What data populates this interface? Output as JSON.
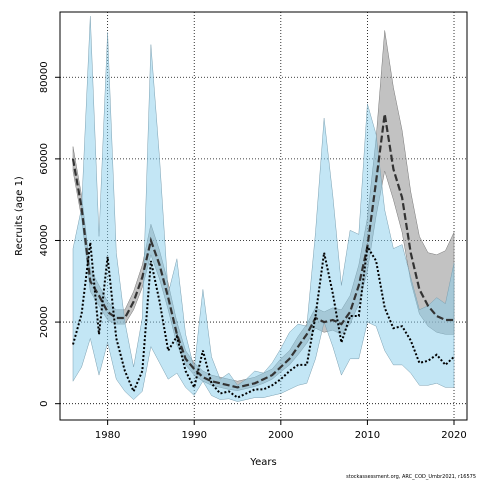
{
  "chart_data": {
    "type": "line",
    "xlabel": "Years",
    "ylabel": "Recruits (age 1)",
    "xlim": [
      1974.5,
      2021.5
    ],
    "ylim": [
      -4000,
      96000
    ],
    "x_ticks": [
      1980,
      1990,
      2000,
      2010,
      2020
    ],
    "y_ticks": [
      0,
      20000,
      40000,
      60000,
      80000
    ],
    "grid": true,
    "grid_style": "dotted",
    "caption": "stockassessment.org, ARC_COD_Umbr2021, r16575",
    "colors": {
      "blue_band": "#87CEEB",
      "blue_line": "#000000",
      "grey_band": "#999999",
      "grey_line": "#333333"
    },
    "series": [
      {
        "style": "blue-dotted",
        "x": [
          1976,
          1977,
          1978,
          1979,
          1980,
          1981,
          1982,
          1983,
          1984,
          1985,
          1986,
          1987,
          1988,
          1989,
          1990,
          1991,
          1992,
          1993,
          1994,
          1995,
          1996,
          1997,
          1998,
          1999,
          2000,
          2001,
          2002,
          2003,
          2004,
          2005,
          2006,
          2007,
          2008,
          2009,
          2010,
          2011,
          2012,
          2013,
          2014,
          2015,
          2016,
          2017,
          2018,
          2019,
          2020
        ],
        "y": [
          14500,
          22000,
          39500,
          17000,
          36000,
          16000,
          8000,
          3000,
          8000,
          35000,
          25000,
          13000,
          16500,
          8000,
          4000,
          13000,
          5000,
          2500,
          3000,
          1500,
          2500,
          3500,
          3500,
          4500,
          6000,
          8000,
          9500,
          9500,
          21500,
          37000,
          27000,
          15000,
          21500,
          21500,
          38500,
          35000,
          23500,
          18500,
          19000,
          15500,
          10000,
          10500,
          12000,
          9500,
          11500
        ],
        "lower": [
          5500,
          9000,
          16000,
          7000,
          15000,
          6000,
          3000,
          1000,
          3000,
          14000,
          10000,
          6000,
          7500,
          4000,
          2000,
          5500,
          2000,
          1000,
          1200,
          500,
          1000,
          1500,
          1500,
          2000,
          2500,
          3500,
          4500,
          5000,
          11000,
          20000,
          14000,
          7000,
          11000,
          11000,
          20000,
          19000,
          13000,
          9500,
          9500,
          7500,
          4500,
          4500,
          5000,
          4000,
          4000
        ],
        "upper": [
          38000,
          48000,
          95000,
          41000,
          91000,
          37000,
          20000,
          9000,
          21000,
          88000,
          60000,
          27000,
          35500,
          17000,
          8500,
          28000,
          11500,
          6000,
          7500,
          4500,
          6000,
          8000,
          7500,
          10000,
          13500,
          17500,
          19500,
          19000,
          42000,
          70000,
          51000,
          29000,
          42500,
          41500,
          73500,
          66000,
          47500,
          38000,
          39000,
          31000,
          23000,
          24000,
          26000,
          24500,
          34500
        ]
      },
      {
        "style": "grey-dashed",
        "x": [
          1976,
          1977,
          1978,
          1979,
          1980,
          1981,
          1982,
          1983,
          1984,
          1985,
          1986,
          1987,
          1988,
          1989,
          1990,
          1991,
          1992,
          1993,
          1994,
          1995,
          1996,
          1997,
          1998,
          1999,
          2000,
          2001,
          2002,
          2003,
          2004,
          2005,
          2006,
          2007,
          2008,
          2009,
          2010,
          2011,
          2012,
          2013,
          2014,
          2015,
          2016,
          2017,
          2018,
          2019,
          2020
        ],
        "y": [
          60000,
          48000,
          30000,
          26500,
          22500,
          21000,
          21000,
          25000,
          31000,
          40000,
          34000,
          26000,
          17000,
          11000,
          8500,
          6500,
          5500,
          5000,
          4500,
          4000,
          4500,
          5000,
          6000,
          7000,
          9000,
          11000,
          14000,
          17000,
          21000,
          20000,
          20500,
          19500,
          22500,
          29000,
          38500,
          54500,
          71000,
          57500,
          50500,
          37000,
          28000,
          24000,
          21500,
          20500,
          20500
        ],
        "lower": [
          57000,
          45500,
          27500,
          24000,
          20500,
          19500,
          19500,
          23000,
          28500,
          36500,
          30500,
          23000,
          14500,
          9500,
          7000,
          5500,
          4500,
          4000,
          3500,
          3200,
          3700,
          4200,
          5000,
          6000,
          7800,
          9500,
          12000,
          14800,
          18500,
          17500,
          18000,
          17000,
          19500,
          24500,
          32500,
          46000,
          57000,
          50000,
          42000,
          30000,
          22000,
          19000,
          17500,
          17000,
          17000
        ],
        "upper": [
          63000,
          51000,
          33000,
          29000,
          25000,
          23000,
          23000,
          27500,
          34000,
          44000,
          37500,
          29500,
          20000,
          13000,
          10000,
          8000,
          7000,
          6500,
          6000,
          5500,
          6000,
          6500,
          7500,
          8500,
          11000,
          13000,
          16500,
          19500,
          23500,
          22500,
          23500,
          23000,
          26500,
          34000,
          45500,
          65000,
          91500,
          77500,
          67000,
          52000,
          41000,
          37000,
          36500,
          37500,
          42000
        ]
      }
    ]
  }
}
